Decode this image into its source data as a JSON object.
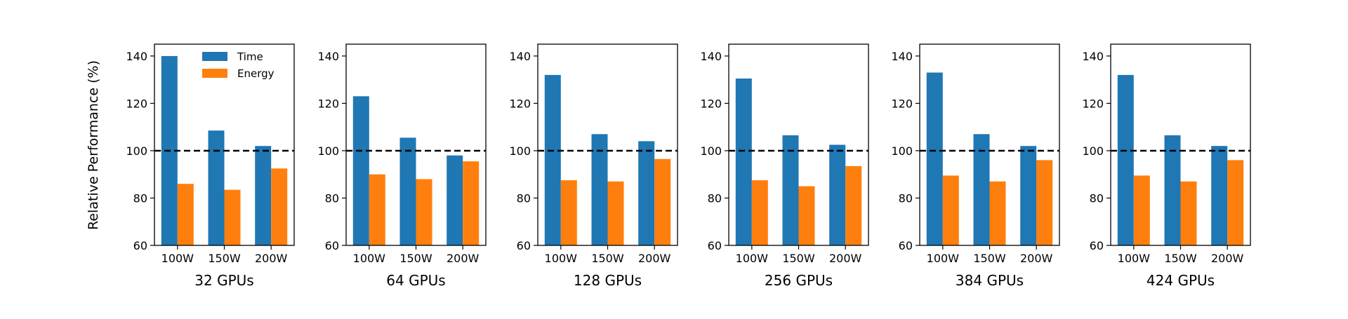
{
  "figure": {
    "ylabel": "Relative Performance (%)",
    "legend": {
      "placement": "top-right",
      "entries": [
        "Time",
        "Energy"
      ]
    }
  },
  "colors": {
    "time": "#1f77b4",
    "energy": "#ff7f0e",
    "reference_line": "#000000"
  },
  "chart_data": [
    {
      "type": "bar",
      "xlabel": "32 GPUs",
      "ylabel": "Relative Performance (%)",
      "categories": [
        "100W",
        "150W",
        "200W"
      ],
      "ylim": [
        60,
        145
      ],
      "yticks": [
        60,
        80,
        100,
        120,
        140
      ],
      "reference_line": 100,
      "series": [
        {
          "name": "Time",
          "values": [
            140,
            108.5,
            102
          ]
        },
        {
          "name": "Energy",
          "values": [
            86,
            83.5,
            92.5
          ]
        }
      ]
    },
    {
      "type": "bar",
      "xlabel": "64 GPUs",
      "categories": [
        "100W",
        "150W",
        "200W"
      ],
      "ylim": [
        60,
        145
      ],
      "yticks": [
        60,
        80,
        100,
        120,
        140
      ],
      "reference_line": 100,
      "series": [
        {
          "name": "Time",
          "values": [
            123,
            105.5,
            98
          ]
        },
        {
          "name": "Energy",
          "values": [
            90,
            88,
            95.5
          ]
        }
      ]
    },
    {
      "type": "bar",
      "xlabel": "128 GPUs",
      "categories": [
        "100W",
        "150W",
        "200W"
      ],
      "ylim": [
        60,
        145
      ],
      "yticks": [
        60,
        80,
        100,
        120,
        140
      ],
      "reference_line": 100,
      "series": [
        {
          "name": "Time",
          "values": [
            132,
            107,
            104
          ]
        },
        {
          "name": "Energy",
          "values": [
            87.5,
            87,
            96.5
          ]
        }
      ]
    },
    {
      "type": "bar",
      "xlabel": "256 GPUs",
      "categories": [
        "100W",
        "150W",
        "200W"
      ],
      "ylim": [
        60,
        145
      ],
      "yticks": [
        60,
        80,
        100,
        120,
        140
      ],
      "reference_line": 100,
      "series": [
        {
          "name": "Time",
          "values": [
            130.5,
            106.5,
            102.5
          ]
        },
        {
          "name": "Energy",
          "values": [
            87.5,
            85,
            93.5
          ]
        }
      ]
    },
    {
      "type": "bar",
      "xlabel": "384 GPUs",
      "categories": [
        "100W",
        "150W",
        "200W"
      ],
      "ylim": [
        60,
        145
      ],
      "yticks": [
        60,
        80,
        100,
        120,
        140
      ],
      "reference_line": 100,
      "series": [
        {
          "name": "Time",
          "values": [
            133,
            107,
            102
          ]
        },
        {
          "name": "Energy",
          "values": [
            89.5,
            87,
            96
          ]
        }
      ]
    },
    {
      "type": "bar",
      "xlabel": "424 GPUs",
      "categories": [
        "100W",
        "150W",
        "200W"
      ],
      "ylim": [
        60,
        145
      ],
      "yticks": [
        60,
        80,
        100,
        120,
        140
      ],
      "reference_line": 100,
      "series": [
        {
          "name": "Time",
          "values": [
            132,
            106.5,
            102
          ]
        },
        {
          "name": "Energy",
          "values": [
            89.5,
            87,
            96
          ]
        }
      ]
    }
  ]
}
